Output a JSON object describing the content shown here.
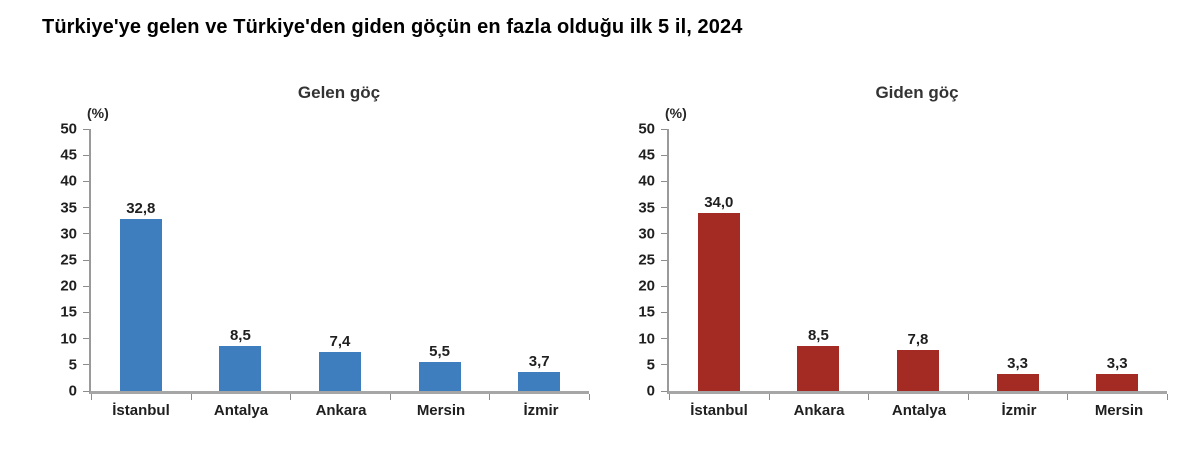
{
  "page_title": "Türkiye'ye gelen ve Türkiye'den giden göçün en fazla olduğu ilk 5 il, 2024",
  "colors": {
    "incoming_bar": "#3E7DBE",
    "outgoing_bar": "#A42B23",
    "axis_line": "#9a9a9a",
    "tick_mark": "#8c8c8c",
    "label_text": "#1f1f1f"
  },
  "chart_data": [
    {
      "type": "bar",
      "title": "Gelen göç",
      "unit_label": "(%)",
      "categories": [
        "İstanbul",
        "Antalya",
        "Ankara",
        "Mersin",
        "İzmir"
      ],
      "values": [
        32.8,
        8.5,
        7.4,
        5.5,
        3.7
      ],
      "value_labels": [
        "32,8",
        "8,5",
        "7,4",
        "5,5",
        "3,7"
      ],
      "ylim": [
        0,
        50
      ],
      "ytick_step": 5,
      "bar_color": "#3E7DBE",
      "grid": false,
      "legend": "none"
    },
    {
      "type": "bar",
      "title": "Giden göç",
      "unit_label": "(%)",
      "categories": [
        "İstanbul",
        "Ankara",
        "Antalya",
        "İzmir",
        "Mersin"
      ],
      "values": [
        34.0,
        8.5,
        7.8,
        3.3,
        3.3
      ],
      "value_labels": [
        "34,0",
        "8,5",
        "7,8",
        "3,3",
        "3,3"
      ],
      "ylim": [
        0,
        50
      ],
      "ytick_step": 5,
      "bar_color": "#A42B23",
      "grid": false,
      "legend": "none"
    }
  ]
}
